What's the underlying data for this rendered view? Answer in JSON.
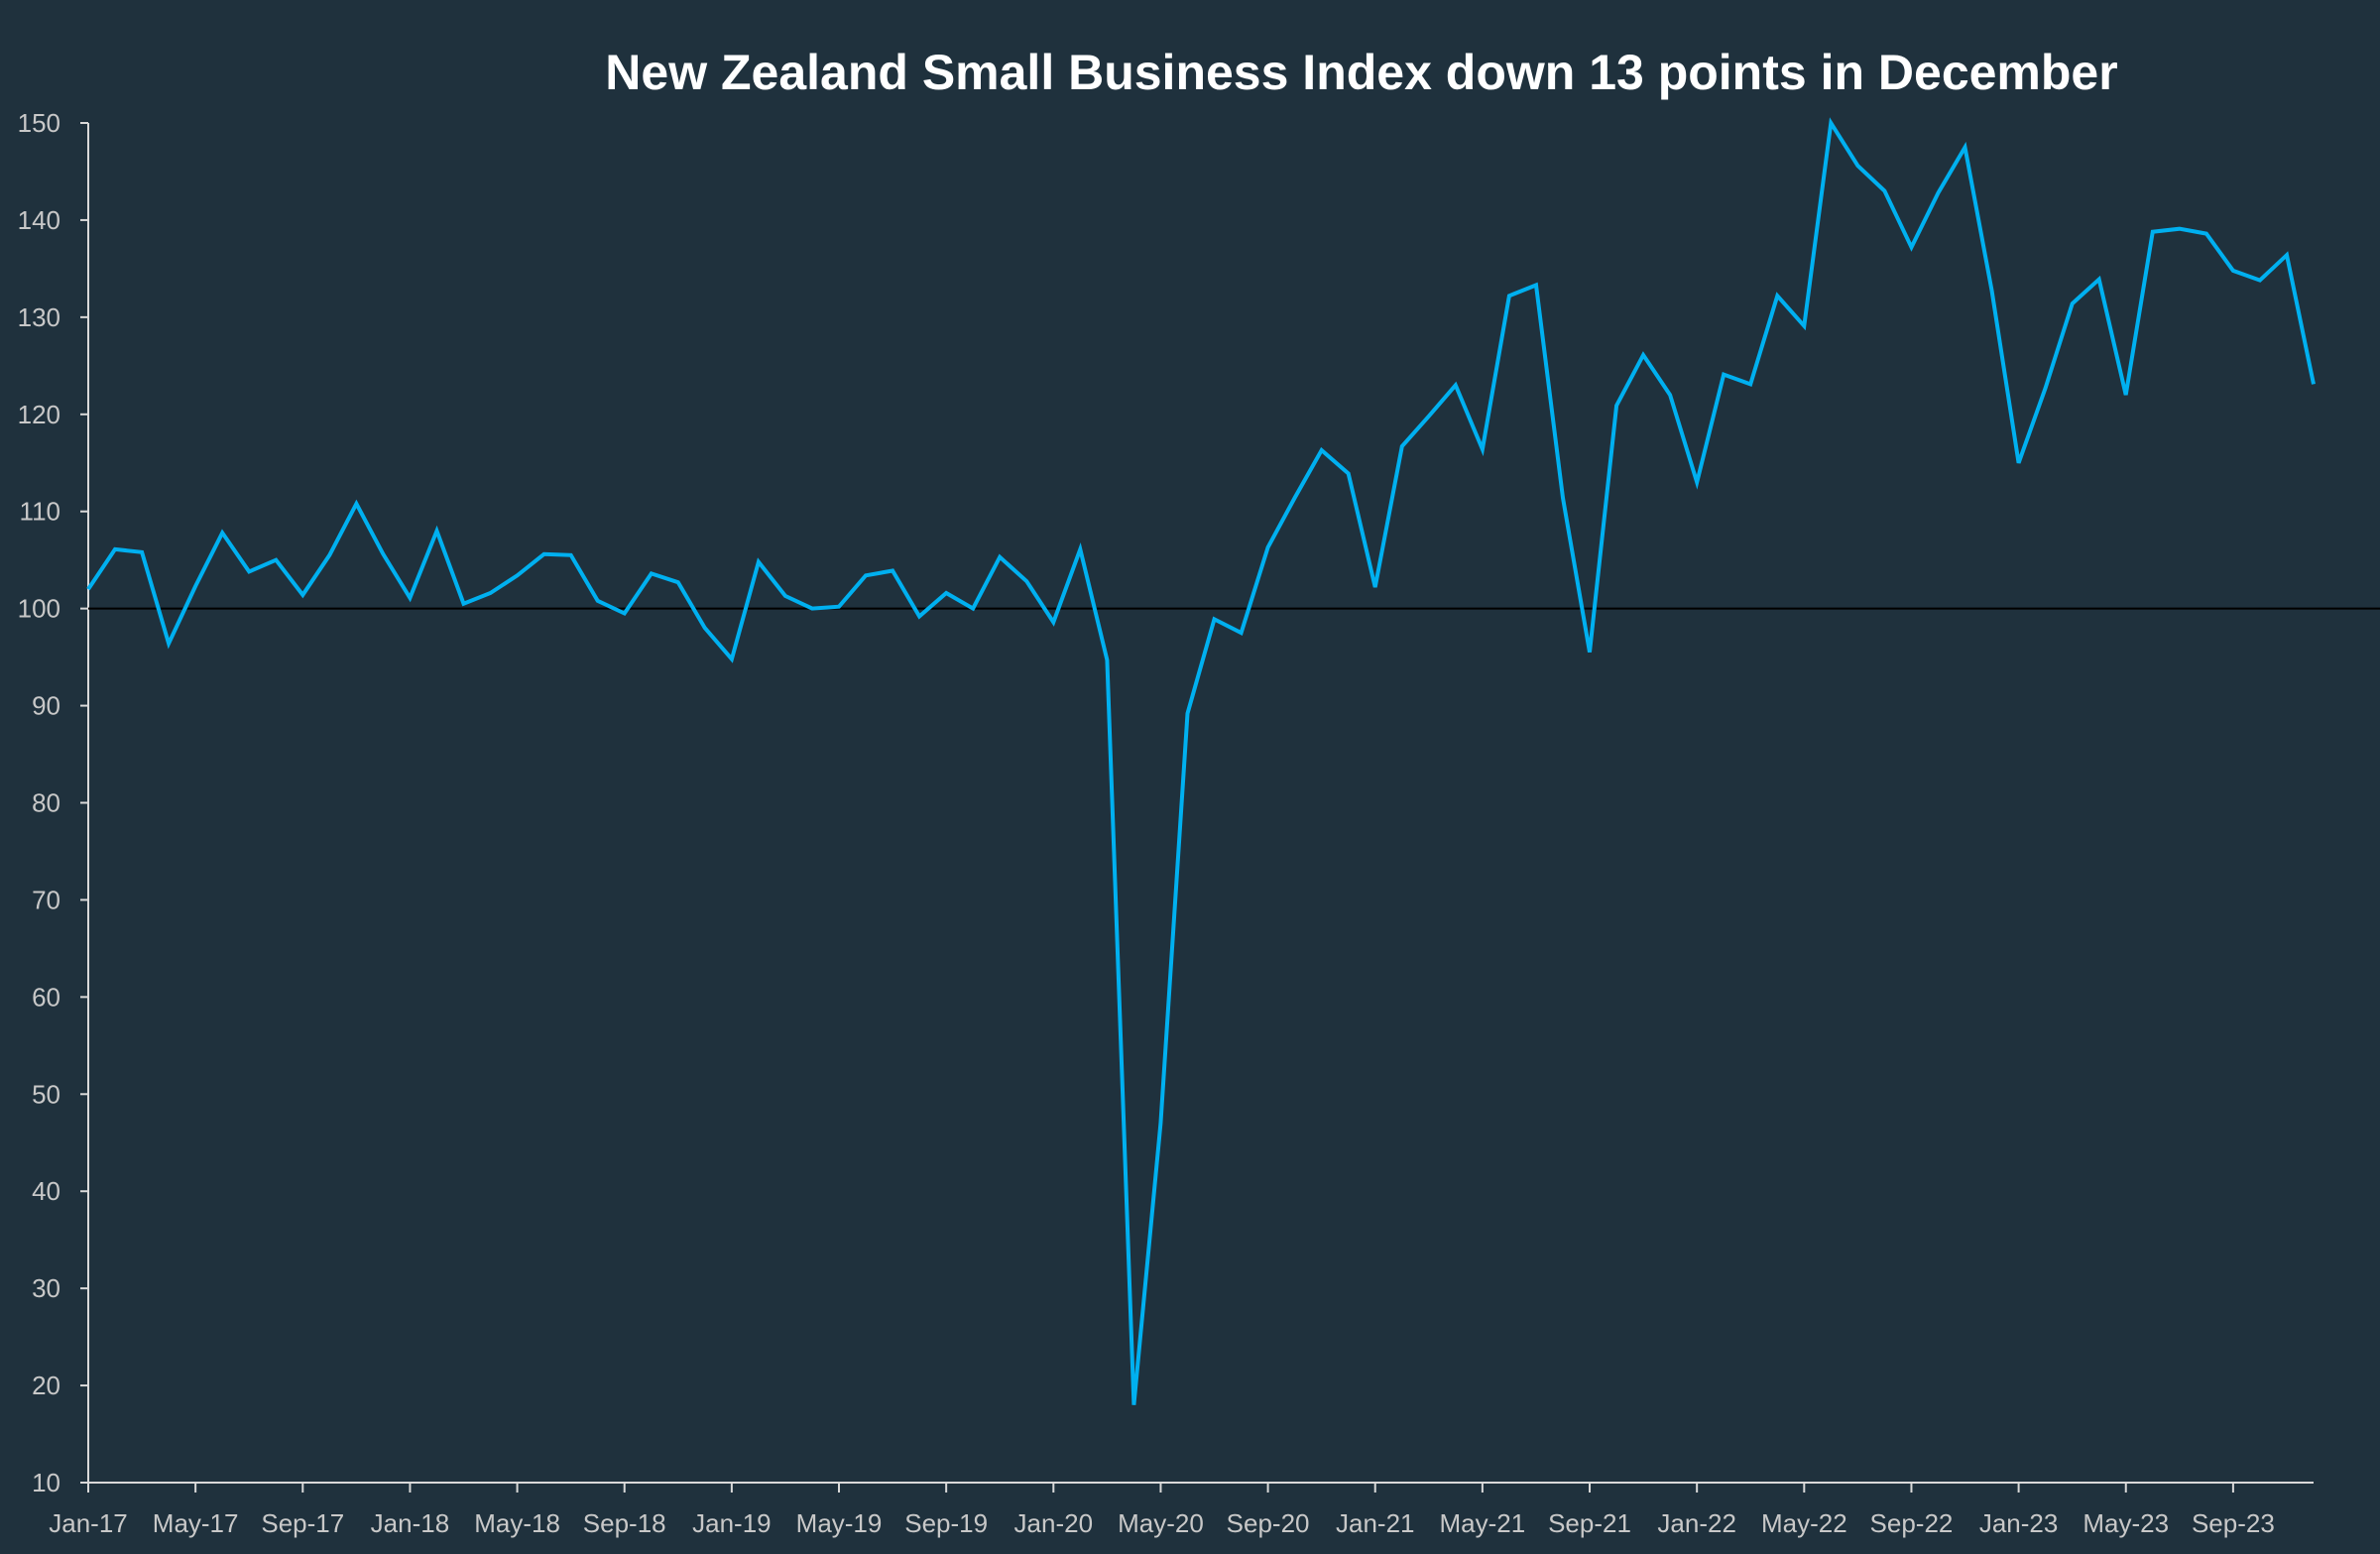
{
  "chart_data": {
    "type": "line",
    "title": "New Zealand Small Business Index down 13 points in December",
    "xlabel": "",
    "ylabel": "",
    "ylim": [
      10,
      150
    ],
    "yticks": [
      10,
      20,
      30,
      40,
      50,
      60,
      70,
      80,
      90,
      100,
      110,
      120,
      130,
      140,
      150
    ],
    "xtick_labels": [
      "Jan-17",
      "May-17",
      "Sep-17",
      "Jan-18",
      "May-18",
      "Sep-18",
      "Jan-19",
      "May-19",
      "Sep-19",
      "Jan-20",
      "May-20",
      "Sep-20",
      "Jan-21",
      "May-21",
      "Sep-21",
      "Jan-22",
      "May-22",
      "Sep-22",
      "Jan-23",
      "May-23",
      "Sep-23"
    ],
    "x_start": "Jan-17",
    "x_end": "Dec-23",
    "reference_line": 100,
    "grid": false,
    "line_color": "#00b0f0",
    "background_color": "#1f313d",
    "values": [
      102.0,
      106.1,
      105.8,
      96.4,
      102.3,
      107.8,
      103.8,
      105.0,
      101.4,
      105.5,
      110.8,
      105.6,
      101.1,
      108.0,
      100.5,
      101.6,
      103.4,
      105.6,
      105.5,
      100.8,
      99.5,
      103.6,
      102.7,
      98.0,
      94.8,
      104.8,
      101.3,
      100.0,
      100.2,
      103.4,
      103.9,
      99.2,
      101.6,
      100.0,
      105.3,
      102.8,
      98.6,
      106.1,
      94.7,
      18.0,
      47.0,
      89.2,
      98.9,
      97.5,
      106.3,
      111.4,
      116.3,
      113.9,
      102.2,
      116.7,
      119.8,
      123.0,
      116.4,
      132.2,
      133.3,
      111.4,
      95.5,
      120.9,
      126.1,
      122.0,
      113.0,
      124.1,
      123.1,
      132.2,
      129.1,
      150.0,
      145.6,
      143.0,
      137.2,
      142.8,
      147.5,
      132.7,
      115.0,
      122.7,
      131.4,
      133.9,
      122.0,
      138.8,
      139.1,
      138.6,
      134.8,
      133.8,
      136.4,
      123.1
    ]
  }
}
